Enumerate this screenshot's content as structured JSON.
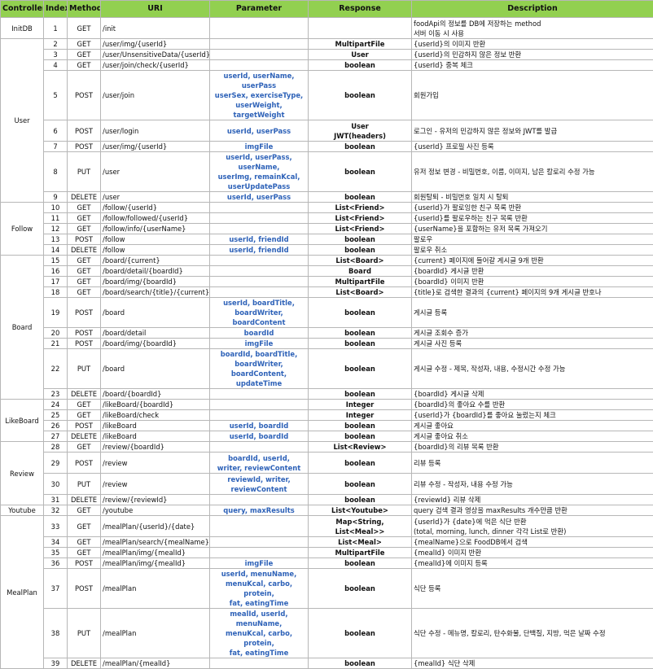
{
  "headers": [
    "Controller",
    "Index",
    "Method",
    "URI",
    "Parameter",
    "Response",
    "Description"
  ],
  "groups": [
    {
      "name": "InitDB",
      "rows": [
        {
          "index": "1",
          "method": "GET",
          "uri": "/init",
          "param": "",
          "response": "",
          "desc": "foodApi의 정보를 DB에 저장하는 method\n서버 이동 시 사용"
        }
      ]
    },
    {
      "name": "User",
      "rows": [
        {
          "index": "2",
          "method": "GET",
          "uri": "/user/img/{userId}",
          "param": "",
          "response": "MultipartFile",
          "desc": "{userId}의 이미지 반환"
        },
        {
          "index": "3",
          "method": "GET",
          "uri": "/user/UnsensitiveData/{userId}",
          "param": "",
          "response": "User",
          "desc": "{userId}의 민감하지 않은 정보 반환"
        },
        {
          "index": "4",
          "method": "GET",
          "uri": "/user/join/check/{userId}",
          "param": "",
          "response": "boolean",
          "desc": "{userId} 중복 체크"
        },
        {
          "index": "5",
          "method": "POST",
          "uri": "/user/join",
          "param": "userId, userName, userPass\nuserSex, exerciseType,\nuserWeight, targetWeight",
          "response": "boolean",
          "desc": "회원가입"
        },
        {
          "index": "6",
          "method": "POST",
          "uri": "/user/login",
          "param": "userId, userPass",
          "response": "User\nJWT(headers)",
          "desc": "로그인 - 유저의 민감하지 않은 정보와 JWT를 발급"
        },
        {
          "index": "7",
          "method": "POST",
          "uri": "/user/img/{userId}",
          "param": "imgFile",
          "response": "boolean",
          "desc": "{userId} 프로필 사진 등록"
        },
        {
          "index": "8",
          "method": "PUT",
          "uri": "/user",
          "param": "userId, userPass, userName,\nuserImg, remainKcal,\nuserUpdatePass",
          "response": "boolean",
          "desc": "유저 정보 변경 - 비밀번호, 이름, 이미지, 남은 칼로리 수정 가능"
        },
        {
          "index": "9",
          "method": "DELETE",
          "uri": "/user",
          "param": "userId, userPass",
          "response": "boolean",
          "desc": "회원탈퇴 - 비밀번호 일치 시 탈퇴"
        }
      ]
    },
    {
      "name": "Follow",
      "rows": [
        {
          "index": "10",
          "method": "GET",
          "uri": "/follow/{userId}",
          "param": "",
          "response": "List<Friend>",
          "desc": "{userId}가 팔로잉한 친구 목록 반환"
        },
        {
          "index": "11",
          "method": "GET",
          "uri": "/follow/followed/{userId}",
          "param": "",
          "response": "List<Friend>",
          "desc": "{userId}를 팔로우하는 친구 목록 반환"
        },
        {
          "index": "12",
          "method": "GET",
          "uri": "/follow/info/{userName}",
          "param": "",
          "response": "List<Friend>",
          "desc": "{userName}을 포함하는 유저 목록 가져오기"
        },
        {
          "index": "13",
          "method": "POST",
          "uri": "/follow",
          "param": "userId, friendId",
          "response": "boolean",
          "desc": "팔로우"
        },
        {
          "index": "14",
          "method": "DELETE",
          "uri": "/follow",
          "param": "userId, friendId",
          "response": "boolean",
          "desc": "팔로우 취소"
        }
      ]
    },
    {
      "name": "Board",
      "rows": [
        {
          "index": "15",
          "method": "GET",
          "uri": "/board/{current}",
          "param": "",
          "response": "List<Board>",
          "desc": "{current} 페이지에 들어갈 게시글 9개 반환"
        },
        {
          "index": "16",
          "method": "GET",
          "uri": "/board/detail/{boardId}",
          "param": "",
          "response": "Board",
          "desc": "{boardId} 게시글 반환"
        },
        {
          "index": "17",
          "method": "GET",
          "uri": "/board/img/{boardId}",
          "param": "",
          "response": "MultipartFile",
          "desc": "{boardId} 이미지 반환"
        },
        {
          "index": "18",
          "method": "GET",
          "uri": "/board/search/{title}/{current}",
          "param": "",
          "response": "List<Board>",
          "desc": "{title}로 검색한 결과의 {current} 페이지의 9개 게시글 반호나"
        },
        {
          "index": "19",
          "method": "POST",
          "uri": "/board",
          "param": "userId, boardTitle,\nboardWriter, boardContent",
          "response": "boolean",
          "desc": "게시글 등록"
        },
        {
          "index": "20",
          "method": "POST",
          "uri": "/board/detail",
          "param": "boardId",
          "response": "boolean",
          "desc": "게시글 조회수 증가"
        },
        {
          "index": "21",
          "method": "POST",
          "uri": "/board/img/{boardId}",
          "param": "imgFile",
          "response": "boolean",
          "desc": "게시글 사진 등록"
        },
        {
          "index": "22",
          "method": "PUT",
          "uri": "/board",
          "param": "boardId, boardTitle,\nboardWriter,\nboardContent, updateTime",
          "response": "boolean",
          "desc": "게시글 수정 - 제목, 작성자, 내용, 수정시간 수정 가능"
        },
        {
          "index": "23",
          "method": "DELETE",
          "uri": "/board/{boardId}",
          "param": "",
          "response": "boolean",
          "desc": "{boardId} 게시글 삭제"
        }
      ]
    },
    {
      "name": "LikeBoard",
      "rows": [
        {
          "index": "24",
          "method": "GET",
          "uri": "/likeBoard/{boardId}",
          "param": "",
          "response": "Integer",
          "desc": "{boardId}의 좋아요 수를 반환"
        },
        {
          "index": "25",
          "method": "GET",
          "uri": "/likeBoard/check",
          "param": "",
          "response": "Integer",
          "desc": "{userId}가 {boardId}를 좋아요 눌렀는지 체크"
        },
        {
          "index": "26",
          "method": "POST",
          "uri": "/likeBoard",
          "param": "userId, boardId",
          "response": "boolean",
          "desc": "게시글 좋아요"
        },
        {
          "index": "27",
          "method": "DELETE",
          "uri": "/likeBoard",
          "param": "userId, boardId",
          "response": "boolean",
          "desc": "게시글 좋아요 취소"
        }
      ]
    },
    {
      "name": "Review",
      "rows": [
        {
          "index": "28",
          "method": "GET",
          "uri": "/review/{boardId}",
          "param": "",
          "response": "List<Review>",
          "desc": "{boardId}의 리뷰 목록 반환"
        },
        {
          "index": "29",
          "method": "POST",
          "uri": "/review",
          "param": "boardId, userId,\nwriter, reviewContent",
          "response": "boolean",
          "desc": "리뷰 등록"
        },
        {
          "index": "30",
          "method": "PUT",
          "uri": "/review",
          "param": "reviewId, writer,\nreviewContent",
          "response": "boolean",
          "desc": "리뷰 수정 - 작성자, 내용 수정 가능"
        },
        {
          "index": "31",
          "method": "DELETE",
          "uri": "/review/{reviewId}",
          "param": "",
          "response": "boolean",
          "desc": "{reviewId} 리뷰 삭제"
        }
      ]
    },
    {
      "name": "Youtube",
      "rows": [
        {
          "index": "32",
          "method": "GET",
          "uri": "/youtube",
          "param": "query, maxResults",
          "response": "List<Youtube>",
          "desc": "query 검색 결과 영상을 maxResults 개수만큼 반환"
        }
      ]
    },
    {
      "name": "MealPlan",
      "rows": [
        {
          "index": "33",
          "method": "GET",
          "uri": "/mealPlan/{userId}/{date}",
          "param": "",
          "response": "Map<String, List<Meal>>",
          "desc": "{userId}가 {date}에 먹은 식단 반환\n(total, morning, lunch, dinner 각각 List로 반환)"
        },
        {
          "index": "34",
          "method": "GET",
          "uri": "/mealPlan/search/{mealName}",
          "param": "",
          "response": "List<Meal>",
          "desc": "{mealName}으로 FoodDB에서 검색"
        },
        {
          "index": "35",
          "method": "GET",
          "uri": "/mealPlan/img/{mealId}",
          "param": "",
          "response": "MultipartFile",
          "desc": "{mealId} 이미지 반환"
        },
        {
          "index": "36",
          "method": "POST",
          "uri": "/mealPlan/img/{mealId}",
          "param": "imgFile",
          "response": "boolean",
          "desc": "{mealId}에 이미지 등록"
        },
        {
          "index": "37",
          "method": "POST",
          "uri": "/mealPlan",
          "param": "userId, menuName,\nmenuKcal, carbo, protein,\nfat, eatingTime",
          "response": "boolean",
          "desc": "식단 등록"
        },
        {
          "index": "38",
          "method": "PUT",
          "uri": "/mealPlan",
          "param": "mealId, userId, menuName,\nmenuKcal, carbo, protein,\nfat, eatingTime",
          "response": "boolean",
          "desc": "식단 수정 - 메뉴명, 칼로리, 탄수화물, 단백질, 지방, 먹은 날짜 수정"
        },
        {
          "index": "39",
          "method": "DELETE",
          "uri": "/mealPlan/{mealId}",
          "param": "",
          "response": "boolean",
          "desc": "{mealId} 식단 삭제"
        }
      ]
    }
  ]
}
